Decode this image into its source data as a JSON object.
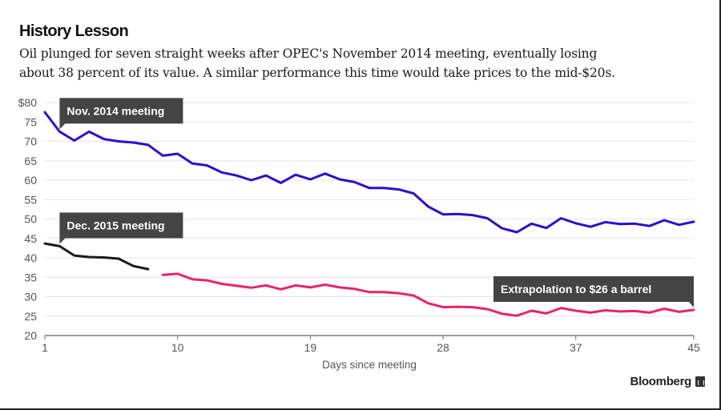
{
  "header": {
    "title": "History Lesson",
    "subtitle_line1": "Oil plunged for seven straight weeks after OPEC's November 2014 meeting, eventually losing",
    "subtitle_line2": "about 38 percent of its value. A similar performance this time would take prices to the mid-$20s."
  },
  "source": {
    "brand": "Bloomberg",
    "icon": "bloomberg-logo-icon"
  },
  "chart_data": {
    "type": "line",
    "title": "History Lesson",
    "xlabel": "Days since meeting",
    "ylabel": "",
    "xlim": [
      1,
      45
    ],
    "ylim": [
      20,
      80
    ],
    "x_ticks": [
      1,
      10,
      19,
      28,
      37,
      45
    ],
    "y_ticks": [
      {
        "value": 80,
        "label": "$80"
      },
      {
        "value": 75,
        "label": "75"
      },
      {
        "value": 70,
        "label": "70"
      },
      {
        "value": 65,
        "label": "65"
      },
      {
        "value": 60,
        "label": "60"
      },
      {
        "value": 55,
        "label": "55"
      },
      {
        "value": 50,
        "label": "50"
      },
      {
        "value": 45,
        "label": "45"
      },
      {
        "value": 40,
        "label": "40"
      },
      {
        "value": 35,
        "label": "35"
      },
      {
        "value": 30,
        "label": "30"
      },
      {
        "value": 25,
        "label": "25"
      },
      {
        "value": 20,
        "label": "20"
      }
    ],
    "grid": true,
    "series": [
      {
        "name": "Nov. 2014 meeting",
        "color": "#2a0fcc",
        "x_start": 1,
        "values": [
          77.5,
          72.5,
          70.2,
          72.5,
          70.6,
          70.0,
          69.7,
          69.1,
          66.3,
          66.8,
          64.3,
          63.8,
          62.0,
          61.2,
          60.0,
          61.2,
          59.3,
          61.4,
          60.2,
          61.7,
          60.2,
          59.5,
          58.0,
          58.0,
          57.6,
          56.6,
          53.2,
          51.2,
          51.3,
          51.0,
          50.2,
          47.6,
          46.6,
          48.8,
          47.7,
          50.2,
          48.9,
          48.0,
          49.2,
          48.7,
          48.8,
          48.2,
          49.7,
          48.5,
          49.3
        ]
      },
      {
        "name": "Dec. 2015 meeting",
        "color": "#1a1a1a",
        "x_start": 1,
        "values": [
          43.7,
          43.0,
          40.6,
          40.2,
          40.1,
          39.8,
          37.9,
          37.1
        ]
      },
      {
        "name": "Extrapolation to $26 a barrel",
        "color": "#e8246a",
        "x_start": 9,
        "values": [
          35.6,
          35.9,
          34.5,
          34.2,
          33.3,
          32.8,
          32.3,
          32.9,
          31.9,
          32.9,
          32.4,
          33.1,
          32.4,
          32.0,
          31.2,
          31.2,
          30.9,
          30.3,
          28.3,
          27.3,
          27.4,
          27.3,
          26.8,
          25.6,
          25.1,
          26.4,
          25.7,
          27.1,
          26.4,
          25.9,
          26.5,
          26.2,
          26.3,
          25.9,
          26.9,
          26.1,
          26.6
        ]
      }
    ],
    "annotations": [
      {
        "text": "Nov. 2014 meeting",
        "x": 2,
        "y": 72.5,
        "series": 0
      },
      {
        "text": "Dec. 2015 meeting",
        "x": 2,
        "y": 43.0,
        "series": 1
      },
      {
        "text": "Extrapolation to $26 a barrel",
        "x": 45,
        "y": 26.6,
        "series": 2
      }
    ],
    "colors": {
      "grid": "#e6e6e6",
      "axis": "#666666",
      "callout_bg": "#444444"
    }
  }
}
